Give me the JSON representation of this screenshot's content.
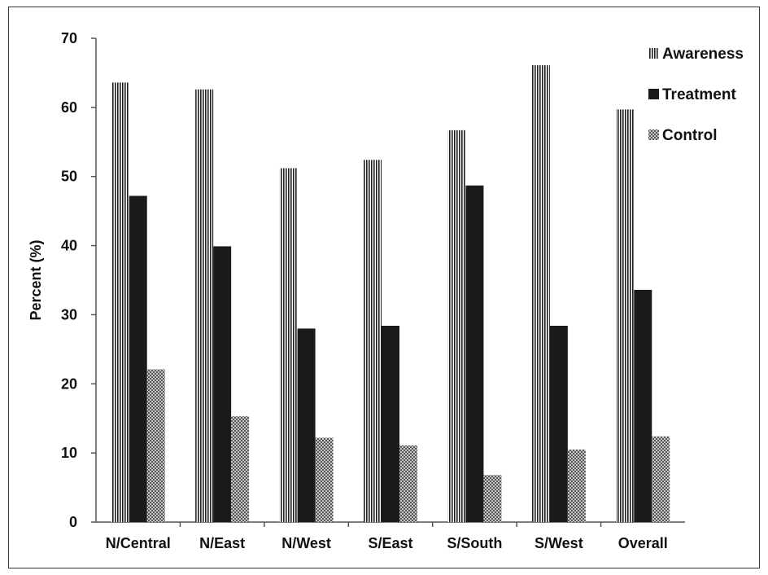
{
  "chart_data": {
    "type": "bar",
    "title": "",
    "xlabel": "",
    "ylabel": "Percent (%)",
    "ylim": [
      0,
      70
    ],
    "yticks": [
      0,
      10,
      20,
      30,
      40,
      50,
      60,
      70
    ],
    "grid": false,
    "legend_position": "top-right",
    "categories": [
      "N/Central",
      "N/East",
      "N/West",
      "S/East",
      "S/South",
      "S/West",
      "Overall"
    ],
    "series": [
      {
        "name": "Awareness",
        "fill": "vertical-stripes",
        "color": "#222222",
        "values": [
          63.6,
          62.6,
          51.2,
          52.4,
          56.7,
          66.1,
          59.7
        ]
      },
      {
        "name": "Treatment",
        "fill": "solid",
        "color": "#1a1a1a",
        "values": [
          47.2,
          39.9,
          28.0,
          28.4,
          48.7,
          28.4,
          33.6
        ]
      },
      {
        "name": "Control",
        "fill": "checkered",
        "color": "#6b6b6b",
        "values": [
          22.1,
          15.3,
          12.2,
          11.1,
          6.8,
          10.5,
          12.4
        ]
      }
    ]
  }
}
